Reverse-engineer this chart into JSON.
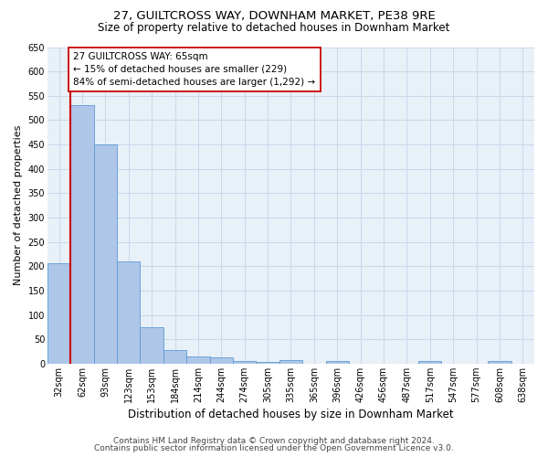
{
  "title": "27, GUILTCROSS WAY, DOWNHAM MARKET, PE38 9RE",
  "subtitle": "Size of property relative to detached houses in Downham Market",
  "xlabel": "Distribution of detached houses by size in Downham Market",
  "ylabel": "Number of detached properties",
  "categories": [
    "32sqm",
    "62sqm",
    "93sqm",
    "123sqm",
    "153sqm",
    "184sqm",
    "214sqm",
    "244sqm",
    "274sqm",
    "305sqm",
    "335sqm",
    "365sqm",
    "396sqm",
    "426sqm",
    "456sqm",
    "487sqm",
    "517sqm",
    "547sqm",
    "577sqm",
    "608sqm",
    "638sqm"
  ],
  "values": [
    207,
    530,
    450,
    210,
    75,
    27,
    15,
    12,
    5,
    3,
    7,
    0,
    5,
    0,
    0,
    0,
    5,
    0,
    0,
    5,
    0
  ],
  "bar_color": "#aec6e8",
  "bar_edge_color": "#5b9bd5",
  "ref_line_color": "#cc0000",
  "annotation_line1": "27 GUILTCROSS WAY: 65sqm",
  "annotation_line2": "← 15% of detached houses are smaller (229)",
  "annotation_line3": "84% of semi-detached houses are larger (1,292) →",
  "annotation_box_facecolor": "#ffffff",
  "annotation_box_edgecolor": "#cc0000",
  "ylim": [
    0,
    650
  ],
  "yticks": [
    0,
    50,
    100,
    150,
    200,
    250,
    300,
    350,
    400,
    450,
    500,
    550,
    600,
    650
  ],
  "grid_color": "#c8d8ea",
  "bg_color": "#e8f0f8",
  "footer1": "Contains HM Land Registry data © Crown copyright and database right 2024.",
  "footer2": "Contains public sector information licensed under the Open Government Licence v3.0.",
  "title_fontsize": 9.5,
  "subtitle_fontsize": 8.5,
  "ylabel_fontsize": 8,
  "xlabel_fontsize": 8.5,
  "tick_fontsize": 7,
  "annotation_fontsize": 7.5,
  "footer_fontsize": 6.5,
  "ref_line_x": 0.5
}
